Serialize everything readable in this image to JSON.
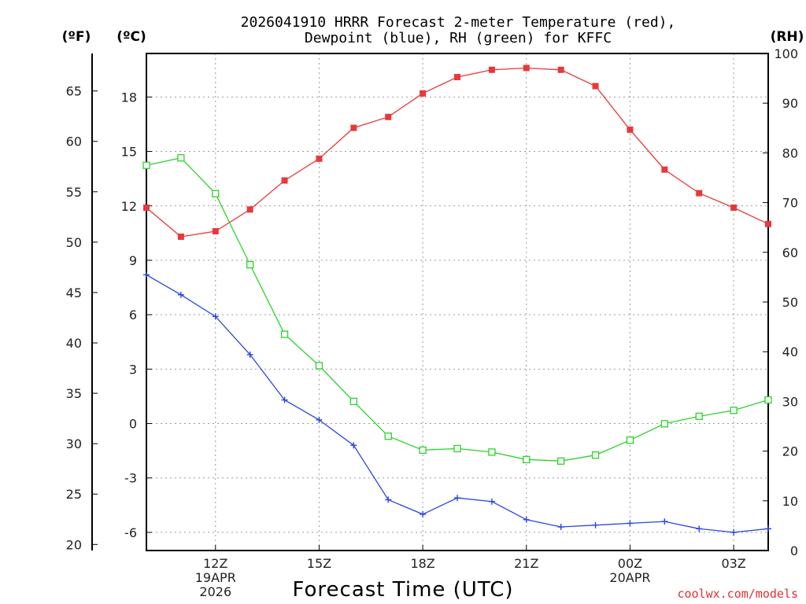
{
  "chart_data": {
    "type": "line",
    "title_line1": "2026041910 HRRR Forecast 2-meter Temperature (red),",
    "title_line2": "Dewpoint (blue), RH (green) for KFFC",
    "xlabel": "Forecast Time (UTC)",
    "credit": "coolwx.com/models",
    "units": {
      "f": "(ºF)",
      "c": "(ºC)",
      "rh": "(RH)"
    },
    "x_hours": [
      10,
      11,
      12,
      13,
      14,
      15,
      16,
      17,
      18,
      19,
      20,
      21,
      22,
      23,
      24,
      25,
      26,
      27,
      28
    ],
    "xlim": [
      10,
      28
    ],
    "c_ylim": [
      -7,
      20.4
    ],
    "rh_ylim": [
      0,
      100
    ],
    "c_ticks": [
      -6,
      -3,
      0,
      3,
      6,
      9,
      12,
      15,
      18
    ],
    "f_ticks": [
      20,
      25,
      30,
      35,
      40,
      45,
      50,
      55,
      60,
      65
    ],
    "rh_ticks": [
      0,
      10,
      20,
      30,
      40,
      50,
      60,
      70,
      80,
      90,
      100
    ],
    "x_ticks": [
      {
        "hour": 12,
        "lines": [
          "12Z",
          "19APR",
          "2026"
        ]
      },
      {
        "hour": 15,
        "lines": [
          "15Z"
        ]
      },
      {
        "hour": 18,
        "lines": [
          "18Z"
        ]
      },
      {
        "hour": 21,
        "lines": [
          "21Z"
        ]
      },
      {
        "hour": 24,
        "lines": [
          "00Z",
          "20APR"
        ]
      },
      {
        "hour": 27,
        "lines": [
          "03Z"
        ]
      }
    ],
    "series": [
      {
        "name": "2-meter Temperature",
        "axis": "c",
        "color": "#e8383a",
        "marker": "filled-square",
        "values": [
          11.9,
          10.3,
          10.6,
          11.8,
          13.4,
          14.6,
          16.3,
          16.9,
          18.2,
          19.1,
          19.5,
          19.6,
          19.5,
          18.6,
          16.2,
          14.0,
          12.7,
          11.9,
          11.0
        ]
      },
      {
        "name": "Dewpoint",
        "axis": "c",
        "color": "#2a45e0",
        "marker": "plus",
        "values": [
          8.2,
          7.1,
          5.9,
          3.8,
          1.3,
          0.2,
          -1.2,
          -4.2,
          -5.0,
          -4.1,
          -4.3,
          -5.3,
          -5.7,
          -5.6,
          -5.5,
          -5.4,
          -5.8,
          -6.0,
          -5.8
        ]
      },
      {
        "name": "RH",
        "axis": "rh",
        "color": "#2ed12e",
        "marker": "open-square",
        "values": [
          77.5,
          79.0,
          71.8,
          57.5,
          43.5,
          37.2,
          30.0,
          23.0,
          20.2,
          20.5,
          19.8,
          18.3,
          18.0,
          19.2,
          22.2,
          25.5,
          27.0,
          28.2,
          30.3
        ]
      }
    ]
  }
}
